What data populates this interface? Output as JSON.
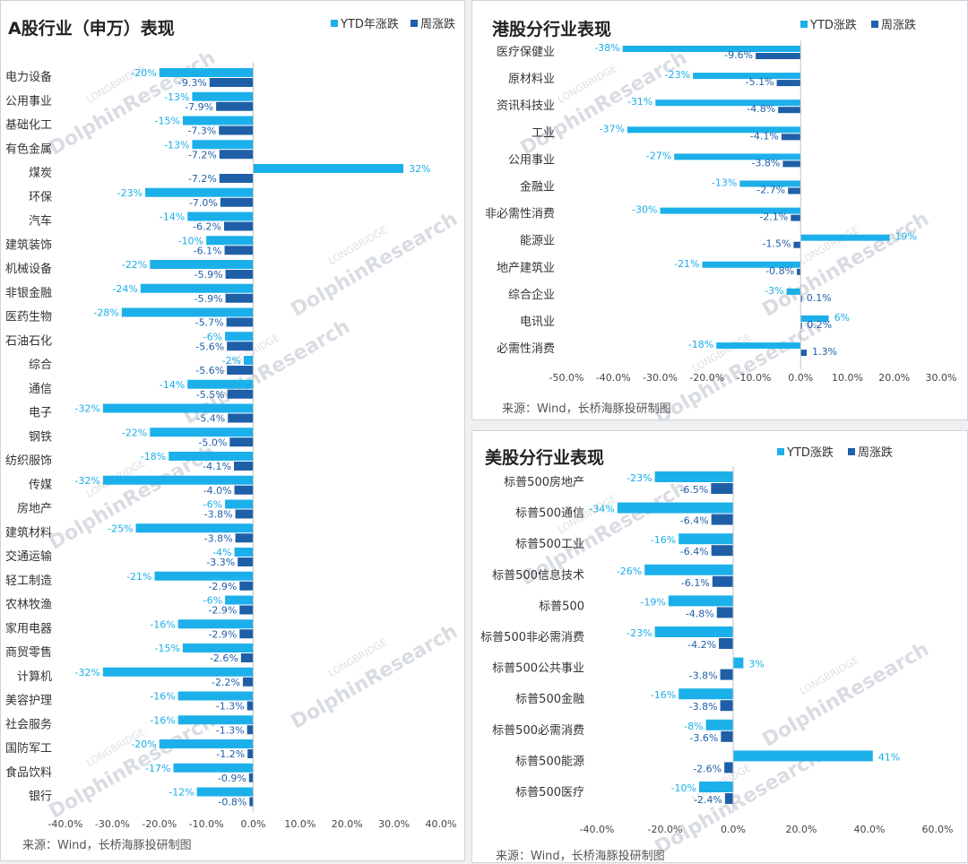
{
  "colors": {
    "ytd": "#1cb0ea",
    "week": "#1f5fa8"
  },
  "watermark": {
    "brand": "DolphinResearch",
    "sub": "LONGBRIDGE"
  },
  "chart_data": [
    {
      "id": "a",
      "type": "bar",
      "orientation": "horizontal",
      "title": "A股行业（申万）表现",
      "legend": [
        "YTD年涨跌",
        "周涨跌"
      ],
      "legend_position": "top-right",
      "source": "来源：Wind，长桥海豚投研制图",
      "xlim": [
        -40,
        40
      ],
      "xticks": [
        "-40.0%",
        "-30.0%",
        "-20.0%",
        "-10.0%",
        "0.0%",
        "10.0%",
        "20.0%",
        "30.0%",
        "40.0%"
      ],
      "categories": [
        "电力设备",
        "公用事业",
        "基础化工",
        "有色金属",
        "煤炭",
        "环保",
        "汽车",
        "建筑装饰",
        "机械设备",
        "非银金融",
        "医药生物",
        "石油石化",
        "综合",
        "通信",
        "电子",
        "钢铁",
        "纺织服饰",
        "传媒",
        "房地产",
        "建筑材料",
        "交通运输",
        "轻工制造",
        "农林牧渔",
        "家用电器",
        "商贸零售",
        "计算机",
        "美容护理",
        "社会服务",
        "国防军工",
        "食品饮料",
        "银行"
      ],
      "series": [
        {
          "name": "YTD年涨跌",
          "values": [
            -20,
            -13,
            -15,
            -13,
            32,
            -23,
            -14,
            -10,
            -22,
            -24,
            -28,
            -6,
            -2,
            -14,
            -32,
            -22,
            -18,
            -32,
            -6,
            -25,
            -4,
            -21,
            -6,
            -16,
            -15,
            -32,
            -16,
            -16,
            -20,
            -17,
            -12
          ],
          "labels": [
            "-20%",
            "-13%",
            "-15%",
            "-13%",
            "32%",
            "-23%",
            "-14%",
            "-10%",
            "-22%",
            "-24%",
            "-28%",
            "-6%",
            "-2%",
            "-14%",
            "-32%",
            "-22%",
            "-18%",
            "-32%",
            "-6%",
            "-25%",
            "-4%",
            "-21%",
            "-6%",
            "-16%",
            "-15%",
            "-32%",
            "-16%",
            "-16%",
            "-20%",
            "-17%",
            "-12%"
          ]
        },
        {
          "name": "周涨跌",
          "values": [
            -9.3,
            -7.9,
            -7.3,
            -7.2,
            -7.2,
            -7.0,
            -6.2,
            -6.1,
            -5.9,
            -5.9,
            -5.7,
            -5.6,
            -5.6,
            -5.5,
            -5.4,
            -5.0,
            -4.1,
            -4.0,
            -3.8,
            -3.8,
            -3.3,
            -2.9,
            -2.9,
            -2.9,
            -2.6,
            -2.2,
            -1.3,
            -1.3,
            -1.2,
            -0.9,
            -0.8
          ],
          "labels": [
            "-9.3%",
            "-7.9%",
            "-7.3%",
            "-7.2%",
            "-7.2%",
            "-7.0%",
            "-6.2%",
            "-6.1%",
            "-5.9%",
            "-5.9%",
            "-5.7%",
            "-5.6%",
            "-5.6%",
            "-5.5%",
            "-5.4%",
            "-5.0%",
            "-4.1%",
            "-4.0%",
            "-3.8%",
            "-3.8%",
            "-3.3%",
            "-2.9%",
            "-2.9%",
            "-2.9%",
            "-2.6%",
            "-2.2%",
            "-1.3%",
            "-1.3%",
            "-1.2%",
            "-0.9%",
            "-0.8%"
          ]
        }
      ]
    },
    {
      "id": "hk",
      "type": "bar",
      "orientation": "horizontal",
      "title": "港股分行业表现",
      "legend": [
        "YTD涨跌",
        "周涨跌"
      ],
      "legend_position": "top-right",
      "source": "来源：Wind，长桥海豚投研制图",
      "xlim": [
        -50,
        30
      ],
      "xticks": [
        "-50.0%",
        "-40.0%",
        "-30.0%",
        "-20.0%",
        "-10.0%",
        "0.0%",
        "10.0%",
        "20.0%",
        "30.0%"
      ],
      "categories": [
        "医疗保健业",
        "原材料业",
        "资讯科技业",
        "工业",
        "公用事业",
        "金融业",
        "非必需性消费",
        "能源业",
        "地产建筑业",
        "综合企业",
        "电讯业",
        "必需性消费"
      ],
      "series": [
        {
          "name": "YTD涨跌",
          "values": [
            -38,
            -23,
            -31,
            -37,
            -27,
            -13,
            -30,
            19,
            -21,
            -3,
            6,
            -18
          ],
          "labels": [
            "-38%",
            "-23%",
            "-31%",
            "-37%",
            "-27%",
            "-13%",
            "-30%",
            "19%",
            "-21%",
            "-3%",
            "6%",
            "-18%"
          ]
        },
        {
          "name": "周涨跌",
          "values": [
            -9.6,
            -5.1,
            -4.8,
            -4.1,
            -3.8,
            -2.7,
            -2.1,
            -1.5,
            -0.8,
            0.1,
            0.2,
            1.3
          ],
          "labels": [
            "-9.6%",
            "-5.1%",
            "-4.8%",
            "-4.1%",
            "-3.8%",
            "-2.7%",
            "-2.1%",
            "-1.5%",
            "-0.8%",
            "0.1%",
            "0.2%",
            "1.3%"
          ]
        }
      ]
    },
    {
      "id": "us",
      "type": "bar",
      "orientation": "horizontal",
      "title": "美股分行业表现",
      "legend": [
        "YTD涨跌",
        "周涨跌"
      ],
      "legend_position": "top-right",
      "source": "来源：Wind，长桥海豚投研制图",
      "xlim": [
        -40,
        60
      ],
      "xticks": [
        "-40.0%",
        "-20.0%",
        "0.0%",
        "20.0%",
        "40.0%",
        "60.0%"
      ],
      "categories": [
        "标普500房地产",
        "标普500通信",
        "标普500工业",
        "标普500信息技术",
        "标普500",
        "标普500非必需消费",
        "标普500公共事业",
        "标普500金融",
        "标普500必需消费",
        "标普500能源",
        "标普500医疗"
      ],
      "series": [
        {
          "name": "YTD涨跌",
          "values": [
            -23,
            -34,
            -16,
            -26,
            -19,
            -23,
            3,
            -16,
            -8,
            41,
            -10
          ],
          "labels": [
            "-23%",
            "-34%",
            "-16%",
            "-26%",
            "-19%",
            "-23%",
            "3%",
            "-16%",
            "-8%",
            "41%",
            "-10%"
          ]
        },
        {
          "name": "周涨跌",
          "values": [
            -6.5,
            -6.4,
            -6.4,
            -6.1,
            -4.8,
            -4.2,
            -3.8,
            -3.8,
            -3.6,
            -2.6,
            -2.4
          ],
          "labels": [
            "-6.5%",
            "-6.4%",
            "-6.4%",
            "-6.1%",
            "-4.8%",
            "-4.2%",
            "-3.8%",
            "-3.8%",
            "-3.6%",
            "-2.6%",
            "-2.4%"
          ]
        }
      ]
    }
  ]
}
